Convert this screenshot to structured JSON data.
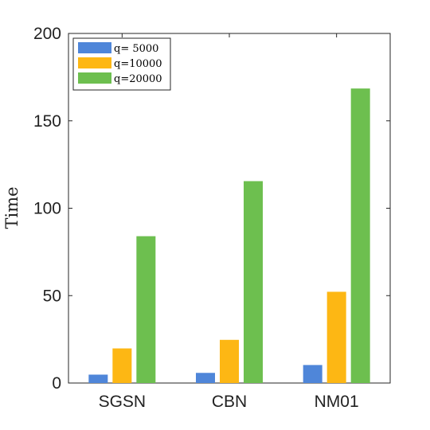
{
  "chart_data": {
    "type": "bar",
    "title": "",
    "xlabel": "",
    "ylabel": "Time",
    "categories": [
      "SGSN",
      "CBN",
      "NM01"
    ],
    "series": [
      {
        "name": "q= 5000",
        "color": "#4f86d9",
        "values": [
          4.8,
          5.8,
          10.3
        ]
      },
      {
        "name": "q=10000",
        "color": "#fdb714",
        "values": [
          19.8,
          24.7,
          52.2
        ]
      },
      {
        "name": "q=20000",
        "color": "#6dbf4f",
        "values": [
          84.0,
          115.5,
          168.5
        ]
      }
    ],
    "ylim": [
      0,
      200
    ],
    "yticks": [
      0,
      50,
      100,
      150,
      200
    ],
    "grid": false,
    "legend_position": "top-left"
  }
}
